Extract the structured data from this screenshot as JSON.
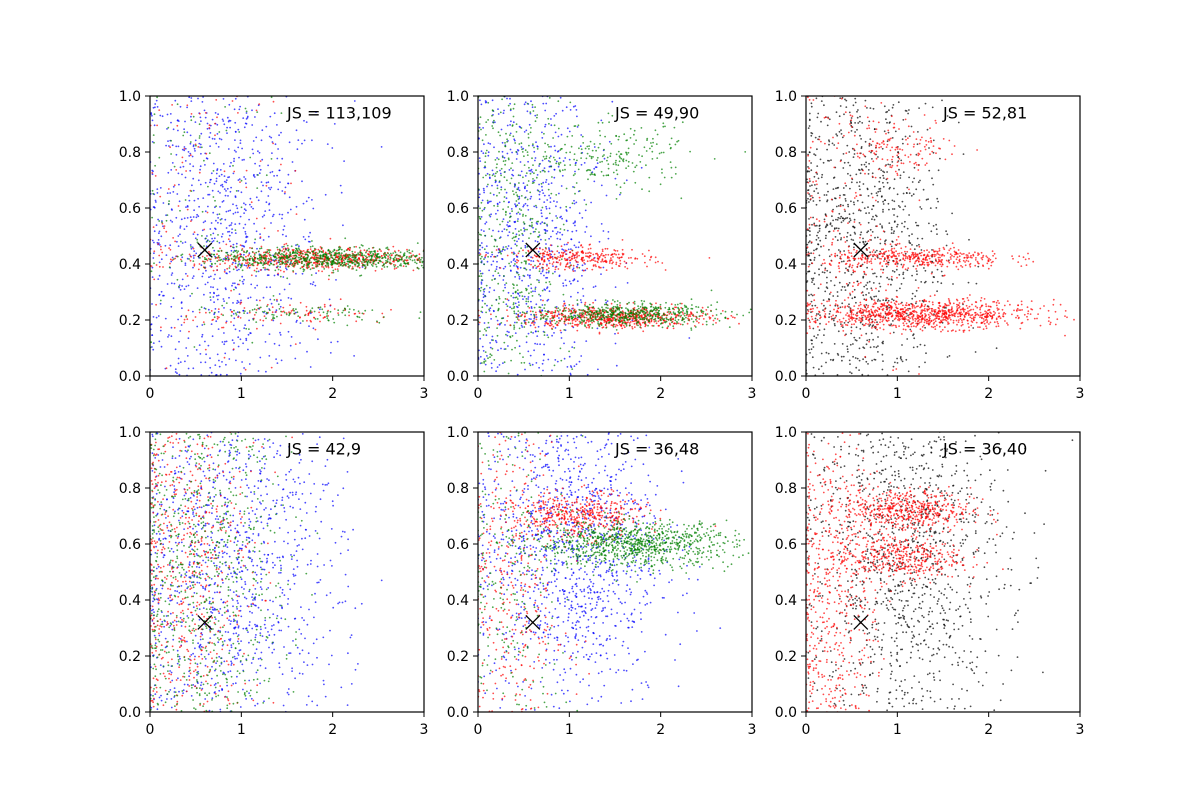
{
  "chart_data": [
    {
      "type": "scatter",
      "annotation": "JS = 113,109",
      "xlim": [
        0,
        3
      ],
      "ylim": [
        0,
        1
      ],
      "xticks": [
        "0",
        "1",
        "2",
        "3"
      ],
      "yticks": [
        "0.0",
        "0.2",
        "0.4",
        "0.6",
        "0.8",
        "1.0"
      ],
      "marker": {
        "x": 0.6,
        "y": 0.45,
        "color": "#000000"
      },
      "clusters": [
        {
          "color": "#0000ff",
          "n": 1100,
          "x_mean": 0.8,
          "x_sd": 0.55,
          "y_mean": 0.5,
          "y_sd": 0.4
        },
        {
          "color": "#ff0000",
          "n": 120,
          "x_mean": 0.6,
          "x_sd": 0.5,
          "y_mean": 0.6,
          "y_sd": 0.35
        },
        {
          "color": "#008000",
          "n": 120,
          "x_mean": 0.6,
          "x_sd": 0.5,
          "y_mean": 0.6,
          "y_sd": 0.35
        },
        {
          "color": "#ff0000",
          "n": 650,
          "x_mean": 1.8,
          "x_sd": 0.65,
          "y_mean": 0.42,
          "y_sd": 0.02
        },
        {
          "color": "#008000",
          "n": 750,
          "x_mean": 1.9,
          "x_sd": 0.65,
          "y_mean": 0.42,
          "y_sd": 0.02
        },
        {
          "color": "#ff0000",
          "n": 100,
          "x_mean": 1.6,
          "x_sd": 0.6,
          "y_mean": 0.22,
          "y_sd": 0.02
        },
        {
          "color": "#008000",
          "n": 100,
          "x_mean": 1.6,
          "x_sd": 0.6,
          "y_mean": 0.22,
          "y_sd": 0.02
        }
      ]
    },
    {
      "type": "scatter",
      "annotation": "JS = 49,90",
      "xlim": [
        0,
        3
      ],
      "ylim": [
        0,
        1
      ],
      "xticks": [
        "0",
        "1",
        "2",
        "3"
      ],
      "yticks": [
        "0.0",
        "0.2",
        "0.4",
        "0.6",
        "0.8",
        "1.0"
      ],
      "marker": {
        "x": 0.6,
        "y": 0.45,
        "color": "#000000"
      },
      "clusters": [
        {
          "color": "#0000ff",
          "n": 1000,
          "x_mean": 0.6,
          "x_sd": 0.4,
          "y_mean": 0.5,
          "y_sd": 0.4
        },
        {
          "color": "#008000",
          "n": 600,
          "x_mean": 0.4,
          "x_sd": 0.3,
          "y_mean": 0.5,
          "y_sd": 0.4
        },
        {
          "color": "#008000",
          "n": 200,
          "x_mean": 1.5,
          "x_sd": 0.4,
          "y_mean": 0.78,
          "y_sd": 0.06
        },
        {
          "color": "#ff0000",
          "n": 300,
          "x_mean": 1.1,
          "x_sd": 0.4,
          "y_mean": 0.42,
          "y_sd": 0.02
        },
        {
          "color": "#ff0000",
          "n": 650,
          "x_mean": 1.5,
          "x_sd": 0.5,
          "y_mean": 0.21,
          "y_sd": 0.02
        },
        {
          "color": "#008000",
          "n": 550,
          "x_mean": 1.6,
          "x_sd": 0.5,
          "y_mean": 0.22,
          "y_sd": 0.02
        }
      ]
    },
    {
      "type": "scatter",
      "annotation": "JS = 52,81",
      "xlim": [
        0,
        3
      ],
      "ylim": [
        0,
        1
      ],
      "xticks": [
        "0",
        "1",
        "2",
        "3"
      ],
      "yticks": [
        "0.0",
        "0.2",
        "0.4",
        "0.6",
        "0.8",
        "1.0"
      ],
      "marker": {
        "x": 0.6,
        "y": 0.45,
        "color": "#000000"
      },
      "clusters": [
        {
          "color": "#000000",
          "n": 1200,
          "x_mean": 0.6,
          "x_sd": 0.45,
          "y_mean": 0.5,
          "y_sd": 0.4
        },
        {
          "color": "#ff0000",
          "n": 200,
          "x_mean": 0.4,
          "x_sd": 0.35,
          "y_mean": 0.6,
          "y_sd": 0.35
        },
        {
          "color": "#ff0000",
          "n": 120,
          "x_mean": 1.1,
          "x_sd": 0.3,
          "y_mean": 0.82,
          "y_sd": 0.05
        },
        {
          "color": "#ff0000",
          "n": 400,
          "x_mean": 1.2,
          "x_sd": 0.5,
          "y_mean": 0.42,
          "y_sd": 0.02
        },
        {
          "color": "#ff0000",
          "n": 900,
          "x_mean": 1.3,
          "x_sd": 0.6,
          "y_mean": 0.22,
          "y_sd": 0.025
        }
      ]
    },
    {
      "type": "scatter",
      "annotation": "JS = 42,9",
      "xlim": [
        0,
        3
      ],
      "ylim": [
        0,
        1
      ],
      "xticks": [
        "0",
        "1",
        "2",
        "3"
      ],
      "yticks": [
        "0.0",
        "0.2",
        "0.4",
        "0.6",
        "0.8",
        "1.0"
      ],
      "marker": {
        "x": 0.6,
        "y": 0.32,
        "color": "#000000"
      },
      "clusters": [
        {
          "color": "#0000ff",
          "n": 1300,
          "x_mean": 0.9,
          "x_sd": 0.6,
          "y_mean": 0.5,
          "y_sd": 0.4
        },
        {
          "color": "#ff0000",
          "n": 700,
          "x_mean": 0.4,
          "x_sd": 0.35,
          "y_mean": 0.5,
          "y_sd": 0.4
        },
        {
          "color": "#008000",
          "n": 900,
          "x_mean": 0.6,
          "x_sd": 0.45,
          "y_mean": 0.5,
          "y_sd": 0.4
        }
      ]
    },
    {
      "type": "scatter",
      "annotation": "JS = 36,48",
      "xlim": [
        0,
        3
      ],
      "ylim": [
        0,
        1
      ],
      "xticks": [
        "0",
        "1",
        "2",
        "3"
      ],
      "yticks": [
        "0.0",
        "0.2",
        "0.4",
        "0.6",
        "0.8",
        "1.0"
      ],
      "marker": {
        "x": 0.6,
        "y": 0.32,
        "color": "#000000"
      },
      "clusters": [
        {
          "color": "#0000ff",
          "n": 1300,
          "x_mean": 1.0,
          "x_sd": 0.5,
          "y_mean": 0.6,
          "y_sd": 0.3
        },
        {
          "color": "#ff0000",
          "n": 400,
          "x_mean": 0.4,
          "x_sd": 0.3,
          "y_mean": 0.4,
          "y_sd": 0.35
        },
        {
          "color": "#ff0000",
          "n": 450,
          "x_mean": 1.1,
          "x_sd": 0.35,
          "y_mean": 0.7,
          "y_sd": 0.04
        },
        {
          "color": "#008000",
          "n": 250,
          "x_mean": 0.4,
          "x_sd": 0.3,
          "y_mean": 0.5,
          "y_sd": 0.35
        },
        {
          "color": "#008000",
          "n": 900,
          "x_mean": 1.7,
          "x_sd": 0.55,
          "y_mean": 0.6,
          "y_sd": 0.04
        }
      ]
    },
    {
      "type": "scatter",
      "annotation": "JS = 36,40",
      "xlim": [
        0,
        3
      ],
      "ylim": [
        0,
        1
      ],
      "xticks": [
        "0",
        "1",
        "2",
        "3"
      ],
      "yticks": [
        "0.0",
        "0.2",
        "0.4",
        "0.6",
        "0.8",
        "1.0"
      ],
      "marker": {
        "x": 0.6,
        "y": 0.32,
        "color": "#000000"
      },
      "clusters": [
        {
          "color": "#000000",
          "n": 1300,
          "x_mean": 1.1,
          "x_sd": 0.55,
          "y_mean": 0.55,
          "y_sd": 0.35
        },
        {
          "color": "#ff0000",
          "n": 600,
          "x_mean": 0.3,
          "x_sd": 0.25,
          "y_mean": 0.4,
          "y_sd": 0.35
        },
        {
          "color": "#ff0000",
          "n": 500,
          "x_mean": 1.1,
          "x_sd": 0.35,
          "y_mean": 0.72,
          "y_sd": 0.04
        },
        {
          "color": "#ff0000",
          "n": 400,
          "x_mean": 1.0,
          "x_sd": 0.35,
          "y_mean": 0.55,
          "y_sd": 0.04
        }
      ]
    }
  ]
}
